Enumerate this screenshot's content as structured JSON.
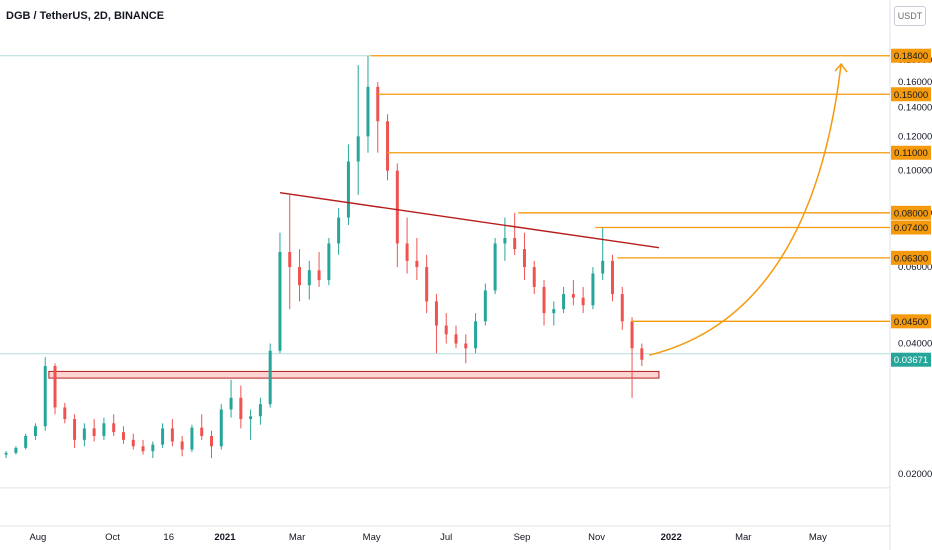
{
  "header": {
    "title": "DGB / TetherUS, 2D, BINANCE",
    "currency_button": "USDT"
  },
  "colors": {
    "up": "#26a69a",
    "down": "#ef5350",
    "orange": "#f59a0c",
    "trendline": "#b71c1c",
    "last_price": "#26a69a",
    "grid_line": "#b2dfdb"
  },
  "chart_data": {
    "type": "candlestick",
    "symbol": "DGB / TetherUS",
    "interval": "2D",
    "exchange": "BINANCE",
    "y_scale": "log",
    "ylim": [
      0.0152,
      0.2
    ],
    "yticks": [
      "0.18000",
      "0.16000",
      "0.14000",
      "0.12000",
      "0.10000",
      "0.08000",
      "0.06000",
      "0.04000",
      "0.02000"
    ],
    "ytick_values": [
      0.18,
      0.16,
      0.14,
      0.12,
      0.1,
      0.08,
      0.06,
      0.04,
      0.02
    ],
    "xticks": [
      "Aug",
      "Oct",
      "16",
      "2021",
      "Mar",
      "May",
      "Jul",
      "Sep",
      "Nov",
      "2022",
      "Mar",
      "May"
    ],
    "xtick_dates": [
      "2020-08-01",
      "2020-10-01",
      "2020-11-16",
      "2021-01-01",
      "2021-03-01",
      "2021-05-01",
      "2021-07-01",
      "2021-09-01",
      "2021-11-01",
      "2022-01-01",
      "2022-03-01",
      "2022-05-01"
    ],
    "xlim": [
      "2020-07-01",
      "2022-06-29"
    ],
    "price_levels": [
      {
        "label": "0.18400",
        "value": 0.184,
        "start": "2021-04-30"
      },
      {
        "label": "0.15000",
        "value": 0.15,
        "start": "2021-05-06"
      },
      {
        "label": "0.11000",
        "value": 0.11,
        "start": "2021-05-14"
      },
      {
        "label": "0.08000",
        "value": 0.08,
        "start": "2021-08-29"
      },
      {
        "label": "0.07400",
        "value": 0.074,
        "start": "2021-10-31"
      },
      {
        "label": "0.06300",
        "value": 0.063,
        "start": "2021-11-18"
      },
      {
        "label": "0.04500",
        "value": 0.045,
        "start": "2021-11-30"
      }
    ],
    "last_price": {
      "label": "0.03671",
      "value": 0.03671
    },
    "trendline": {
      "start": [
        "2021-02-15",
        0.089
      ],
      "end": [
        "2021-12-22",
        0.0665
      ]
    },
    "support_zone": {
      "start": "2020-08-10",
      "end": "2021-12-22",
      "low": 0.0333,
      "high": 0.0345
    },
    "projection_arrow": {
      "start": [
        "2021-12-14",
        0.0376
      ],
      "end": [
        "2022-05-20",
        0.176
      ]
    },
    "candles": [
      [
        "2020-07-06",
        0.0222,
        0.0226,
        0.0218,
        0.0224
      ],
      [
        "2020-07-14",
        0.0224,
        0.0232,
        0.0222,
        0.023
      ],
      [
        "2020-07-22",
        0.023,
        0.0248,
        0.0228,
        0.0245
      ],
      [
        "2020-07-30",
        0.0245,
        0.0262,
        0.024,
        0.0258
      ],
      [
        "2020-08-07",
        0.0258,
        0.0372,
        0.0252,
        0.0355
      ],
      [
        "2020-08-15",
        0.0355,
        0.036,
        0.0275,
        0.0285
      ],
      [
        "2020-08-23",
        0.0285,
        0.0292,
        0.0262,
        0.0268
      ],
      [
        "2020-08-31",
        0.0268,
        0.0275,
        0.023,
        0.024
      ],
      [
        "2020-09-08",
        0.024,
        0.0262,
        0.0232,
        0.0255
      ],
      [
        "2020-09-16",
        0.0255,
        0.0268,
        0.0238,
        0.0245
      ],
      [
        "2020-09-24",
        0.0245,
        0.027,
        0.024,
        0.0262
      ],
      [
        "2020-10-02",
        0.0262,
        0.0275,
        0.0245,
        0.025
      ],
      [
        "2020-10-10",
        0.025,
        0.0258,
        0.0235,
        0.024
      ],
      [
        "2020-10-18",
        0.024,
        0.0248,
        0.0228,
        0.0232
      ],
      [
        "2020-10-26",
        0.0232,
        0.024,
        0.0222,
        0.0226
      ],
      [
        "2020-11-03",
        0.0226,
        0.0238,
        0.0218,
        0.0234
      ],
      [
        "2020-11-11",
        0.0234,
        0.0262,
        0.023,
        0.0255
      ],
      [
        "2020-11-19",
        0.0255,
        0.0268,
        0.0232,
        0.0238
      ],
      [
        "2020-11-27",
        0.0238,
        0.0245,
        0.022,
        0.0228
      ],
      [
        "2020-12-05",
        0.0228,
        0.026,
        0.0225,
        0.0256
      ],
      [
        "2020-12-13",
        0.0256,
        0.0275,
        0.024,
        0.0245
      ],
      [
        "2020-12-21",
        0.0245,
        0.0252,
        0.0218,
        0.0232
      ],
      [
        "2020-12-29",
        0.0232,
        0.029,
        0.0228,
        0.0282
      ],
      [
        "2021-01-06",
        0.0282,
        0.033,
        0.027,
        0.03
      ],
      [
        "2021-01-14",
        0.03,
        0.032,
        0.0255,
        0.0268
      ],
      [
        "2021-01-22",
        0.0268,
        0.0282,
        0.024,
        0.0272
      ],
      [
        "2021-01-30",
        0.0272,
        0.03,
        0.026,
        0.029
      ],
      [
        "2021-02-07",
        0.029,
        0.04,
        0.0285,
        0.0385
      ],
      [
        "2021-02-15",
        0.0385,
        0.072,
        0.038,
        0.065
      ],
      [
        "2021-02-23",
        0.065,
        0.088,
        0.048,
        0.06
      ],
      [
        "2021-03-03",
        0.06,
        0.066,
        0.05,
        0.0545
      ],
      [
        "2021-03-11",
        0.0545,
        0.062,
        0.0505,
        0.059
      ],
      [
        "2021-03-19",
        0.059,
        0.065,
        0.054,
        0.056
      ],
      [
        "2021-03-27",
        0.056,
        0.07,
        0.0545,
        0.068
      ],
      [
        "2021-04-04",
        0.068,
        0.082,
        0.064,
        0.078
      ],
      [
        "2021-04-12",
        0.078,
        0.115,
        0.075,
        0.105
      ],
      [
        "2021-04-20",
        0.105,
        0.175,
        0.088,
        0.12
      ],
      [
        "2021-04-28",
        0.12,
        0.184,
        0.11,
        0.156
      ],
      [
        "2021-05-06",
        0.156,
        0.16,
        0.11,
        0.13
      ],
      [
        "2021-05-14",
        0.13,
        0.135,
        0.095,
        0.1
      ],
      [
        "2021-05-22",
        0.1,
        0.104,
        0.06,
        0.068
      ],
      [
        "2021-05-30",
        0.068,
        0.078,
        0.058,
        0.062
      ],
      [
        "2021-06-07",
        0.062,
        0.07,
        0.056,
        0.06
      ],
      [
        "2021-06-15",
        0.06,
        0.064,
        0.047,
        0.05
      ],
      [
        "2021-06-23",
        0.05,
        0.052,
        0.038,
        0.044
      ],
      [
        "2021-07-01",
        0.044,
        0.047,
        0.04,
        0.042
      ],
      [
        "2021-07-09",
        0.042,
        0.044,
        0.039,
        0.04
      ],
      [
        "2021-07-17",
        0.04,
        0.042,
        0.036,
        0.039
      ],
      [
        "2021-07-25",
        0.039,
        0.047,
        0.038,
        0.045
      ],
      [
        "2021-08-02",
        0.045,
        0.055,
        0.044,
        0.053
      ],
      [
        "2021-08-10",
        0.053,
        0.07,
        0.052,
        0.068
      ],
      [
        "2021-08-18",
        0.068,
        0.078,
        0.062,
        0.07
      ],
      [
        "2021-08-26",
        0.07,
        0.08,
        0.064,
        0.066
      ],
      [
        "2021-09-03",
        0.066,
        0.072,
        0.056,
        0.06
      ],
      [
        "2021-09-11",
        0.06,
        0.062,
        0.052,
        0.054
      ],
      [
        "2021-09-19",
        0.054,
        0.056,
        0.044,
        0.047
      ],
      [
        "2021-09-27",
        0.047,
        0.05,
        0.044,
        0.048
      ],
      [
        "2021-10-05",
        0.048,
        0.054,
        0.047,
        0.052
      ],
      [
        "2021-10-13",
        0.052,
        0.056,
        0.049,
        0.051
      ],
      [
        "2021-10-21",
        0.051,
        0.054,
        0.047,
        0.049
      ],
      [
        "2021-10-29",
        0.049,
        0.06,
        0.048,
        0.058
      ],
      [
        "2021-11-06",
        0.058,
        0.074,
        0.056,
        0.062
      ],
      [
        "2021-11-14",
        0.062,
        0.064,
        0.05,
        0.052
      ],
      [
        "2021-11-22",
        0.052,
        0.054,
        0.043,
        0.045
      ],
      [
        "2021-11-30",
        0.045,
        0.046,
        0.03,
        0.039
      ],
      [
        "2021-12-08",
        0.039,
        0.04,
        0.0355,
        0.0367
      ]
    ]
  }
}
